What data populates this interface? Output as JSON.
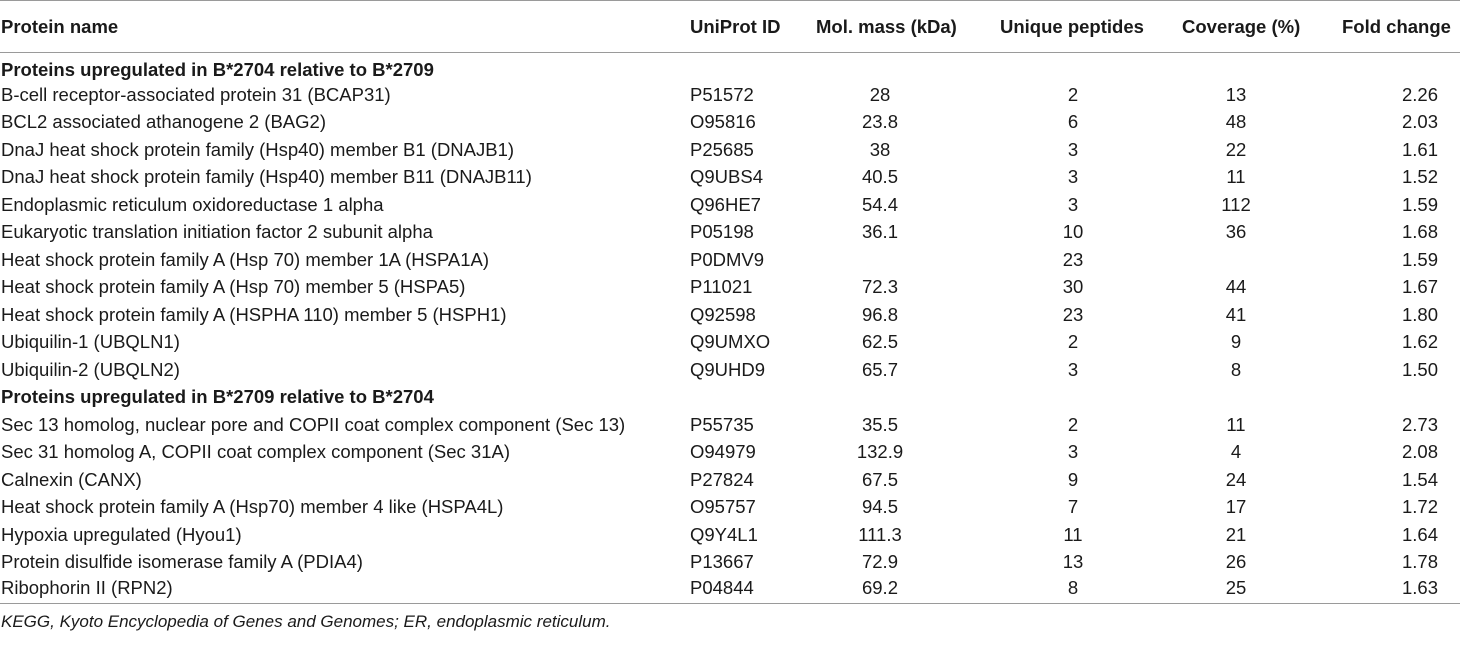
{
  "table": {
    "headers": [
      "Protein name",
      "UniProt ID",
      "Mol. mass (kDa)",
      "Unique peptides",
      "Coverage (%)",
      "Fold change"
    ],
    "sections": [
      {
        "title": "Proteins upregulated in B*2704 relative to B*2709",
        "rows": [
          [
            "B-cell receptor-associated protein 31 (BCAP31)",
            "P51572",
            "28",
            "2",
            "13",
            "2.26"
          ],
          [
            "BCL2 associated athanogene 2 (BAG2)",
            "O95816",
            "23.8",
            "6",
            "48",
            "2.03"
          ],
          [
            "DnaJ heat shock protein family (Hsp40) member B1 (DNAJB1)",
            "P25685",
            "38",
            "3",
            "22",
            "1.61"
          ],
          [
            "DnaJ heat shock protein family (Hsp40) member B11 (DNAJB11)",
            "Q9UBS4",
            "40.5",
            "3",
            "11",
            "1.52"
          ],
          [
            "Endoplasmic reticulum oxidoreductase 1 alpha",
            "Q96HE7",
            "54.4",
            "3",
            "112",
            "1.59"
          ],
          [
            "Eukaryotic translation initiation factor 2 subunit alpha",
            "P05198",
            "36.1",
            "10",
            "36",
            "1.68"
          ],
          [
            "Heat shock protein family A (Hsp 70) member 1A (HSPA1A)",
            "P0DMV9",
            "",
            "23",
            "",
            "1.59"
          ],
          [
            "Heat shock protein family A (Hsp 70) member 5 (HSPA5)",
            "P11021",
            "72.3",
            "30",
            "44",
            "1.67"
          ],
          [
            "Heat shock protein family A (HSPHA 110) member 5 (HSPH1)",
            "Q92598",
            "96.8",
            "23",
            "41",
            "1.80"
          ],
          [
            "Ubiquilin-1 (UBQLN1)",
            "Q9UMXO",
            "62.5",
            "2",
            "9",
            "1.62"
          ],
          [
            "Ubiquilin-2 (UBQLN2)",
            "Q9UHD9",
            "65.7",
            "3",
            "8",
            "1.50"
          ]
        ]
      },
      {
        "title": "Proteins upregulated in B*2709 relative to B*2704",
        "rows": [
          [
            "Sec 13 homolog, nuclear pore and COPII coat complex component (Sec 13)",
            "P55735",
            "35.5",
            "2",
            "11",
            "2.73"
          ],
          [
            "Sec 31 homolog A, COPII coat complex component (Sec 31A)",
            "O94979",
            "132.9",
            "3",
            "4",
            "2.08"
          ],
          [
            "Calnexin (CANX)",
            "P27824",
            "67.5",
            "9",
            "24",
            "1.54"
          ],
          [
            "Heat shock protein family A (Hsp70) member 4 like (HSPA4L)",
            "O95757",
            "94.5",
            "7",
            "17",
            "1.72"
          ],
          [
            "Hypoxia upregulated (Hyou1)",
            "Q9Y4L1",
            "111.3",
            "11",
            "21",
            "1.64"
          ],
          [
            "Protein disulfide isomerase family A (PDIA4)",
            "P13667",
            "72.9",
            "13",
            "26",
            "1.78"
          ],
          [
            "Ribophorin II (RPN2)",
            "P04844",
            "69.2",
            "8",
            "25",
            "1.63"
          ]
        ]
      }
    ]
  },
  "footnote": "KEGG, Kyoto Encyclopedia of Genes and Genomes; ER, endoplasmic reticulum."
}
